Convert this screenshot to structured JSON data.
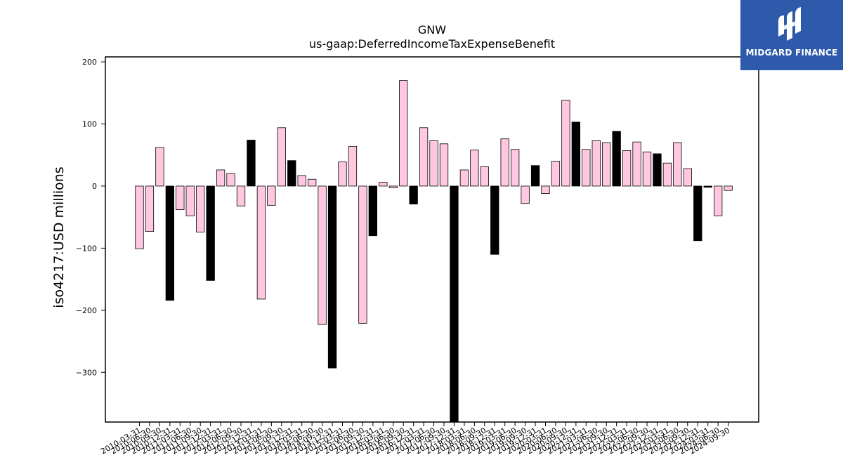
{
  "chart_data": {
    "type": "bar",
    "title": "GNW",
    "subtitle": "us-gaap:DeferredIncomeTaxExpenseBenefit",
    "ylabel": "iso4217:USD  millions",
    "ylim": [
      -380,
      208
    ],
    "yticks": [
      -300,
      -200,
      -100,
      0,
      100,
      200
    ],
    "ytick_labels": [
      "−300",
      "−200",
      "−100",
      "0",
      "100",
      "200"
    ],
    "colors": {
      "pink": "#ffc8e0",
      "black": "#000000",
      "edge": "#000000"
    },
    "categories": [
      "2010-03-31",
      "2010-06-30",
      "2010-09-30",
      "2010-12-31",
      "2011-03-31",
      "2011-06-30",
      "2011-09-30",
      "2011-12-31",
      "2012-03-31",
      "2012-06-30",
      "2012-09-30",
      "2012-12-31",
      "2013-03-31",
      "2013-06-30",
      "2013-09-30",
      "2013-12-31",
      "2014-03-31",
      "2014-06-30",
      "2014-09-30",
      "2014-12-31",
      "2015-03-31",
      "2015-06-30",
      "2015-09-30",
      "2015-12-31",
      "2016-03-31",
      "2016-06-30",
      "2016-09-30",
      "2016-12-31",
      "2017-03-31",
      "2017-06-30",
      "2017-09-30",
      "2017-12-31",
      "2018-03-31",
      "2018-06-30",
      "2018-09-30",
      "2018-12-31",
      "2019-03-31",
      "2019-06-30",
      "2019-09-30",
      "2019-12-31",
      "2020-03-31",
      "2020-06-30",
      "2020-09-30",
      "2020-12-31",
      "2021-03-31",
      "2021-06-30",
      "2021-09-30",
      "2021-12-31",
      "2022-03-31",
      "2022-06-30",
      "2022-09-30",
      "2022-12-31",
      "2023-03-31",
      "2023-06-30",
      "2023-09-30",
      "2023-12-31",
      "2024-03-31",
      "2024-06-30",
      "2024-09-30"
    ],
    "values": [
      -101,
      -73,
      62,
      -184,
      -38,
      -48,
      -74,
      -152,
      26,
      20,
      -32,
      74,
      -182,
      -31,
      94,
      41,
      17,
      11,
      -223,
      -293,
      39,
      64,
      -221,
      -80,
      6,
      -3,
      170,
      -29,
      94,
      73,
      68,
      -380,
      26,
      58,
      31,
      -110,
      76,
      59,
      -28,
      33,
      -12,
      40,
      138,
      103,
      59,
      73,
      70,
      88,
      57,
      71,
      55,
      52,
      37,
      70,
      28,
      -88,
      -2,
      -48,
      -7
    ],
    "bar_colors": [
      "pink",
      "pink",
      "pink",
      "black",
      "pink",
      "pink",
      "pink",
      "black",
      "pink",
      "pink",
      "pink",
      "black",
      "pink",
      "pink",
      "pink",
      "black",
      "pink",
      "pink",
      "pink",
      "black",
      "pink",
      "pink",
      "pink",
      "black",
      "pink",
      "pink",
      "pink",
      "black",
      "pink",
      "pink",
      "pink",
      "black",
      "pink",
      "pink",
      "pink",
      "black",
      "pink",
      "pink",
      "pink",
      "black",
      "pink",
      "pink",
      "pink",
      "black",
      "pink",
      "pink",
      "pink",
      "black",
      "pink",
      "pink",
      "pink",
      "black",
      "pink",
      "pink",
      "pink",
      "black",
      "black",
      "pink",
      "pink"
    ],
    "grid": false,
    "legend": "none"
  },
  "logo": {
    "text": "MIDGARD FINANCE",
    "background": "#2e5aac"
  }
}
